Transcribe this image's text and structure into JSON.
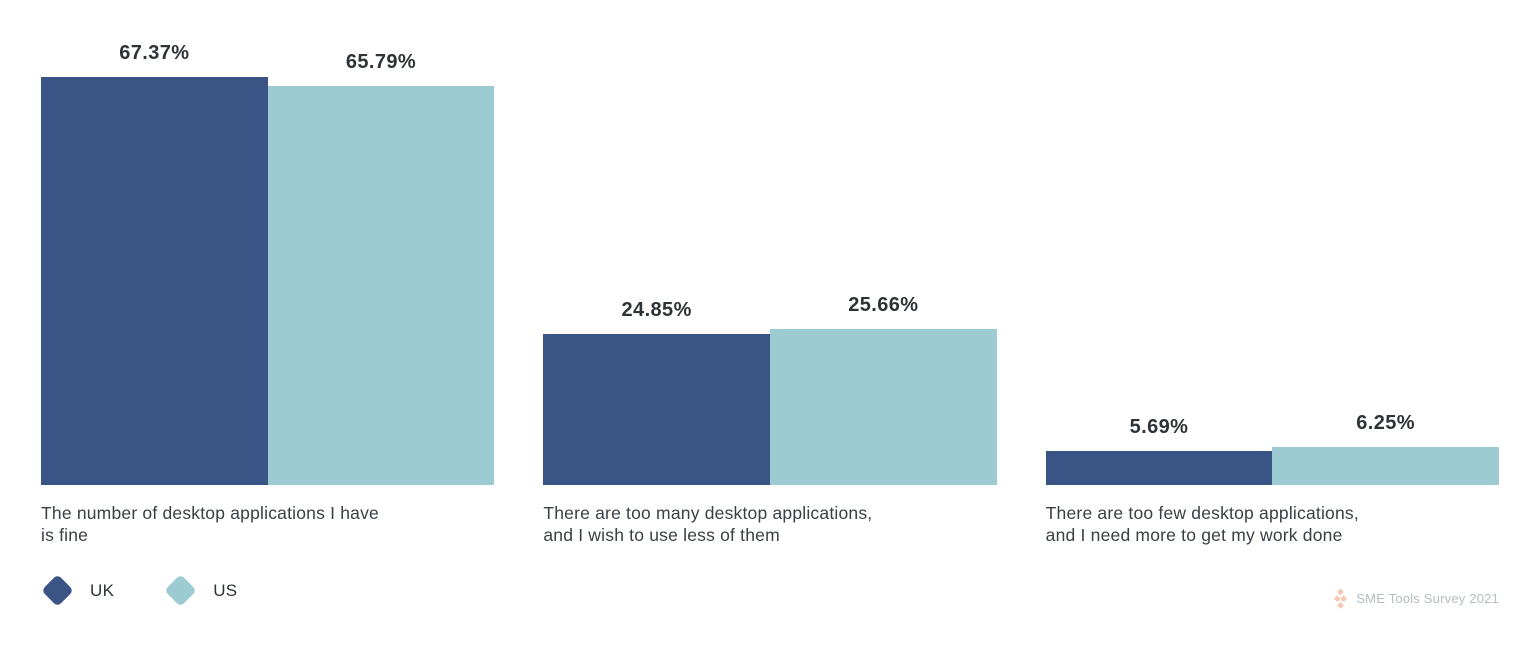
{
  "chart_data": {
    "type": "bar",
    "title": "",
    "categories": [
      "The number of desktop applications I have\nis fine",
      "There are too many desktop applications,\nand I wish to use less of them",
      "There are too few desktop applications,\nand I need more to get my work done"
    ],
    "series": [
      {
        "name": "UK",
        "color": "#3A5585",
        "values": [
          67.37,
          24.85,
          5.69
        ]
      },
      {
        "name": "US",
        "color": "#9CCBD1",
        "values": [
          65.79,
          25.66,
          6.25
        ]
      }
    ],
    "value_label_suffix": "%",
    "ylim": [
      0,
      80
    ],
    "grid": false,
    "axes_visible": false,
    "legend_position": "bottom-left"
  },
  "legend": {
    "items": [
      {
        "label": "UK",
        "color": "#3A5585"
      },
      {
        "label": "US",
        "color": "#9CCBD1"
      }
    ]
  },
  "attribution": {
    "text": "SME Tools Survey 2021",
    "icon": "diamond-cluster-icon",
    "icon_color": "#F5C9B2"
  }
}
